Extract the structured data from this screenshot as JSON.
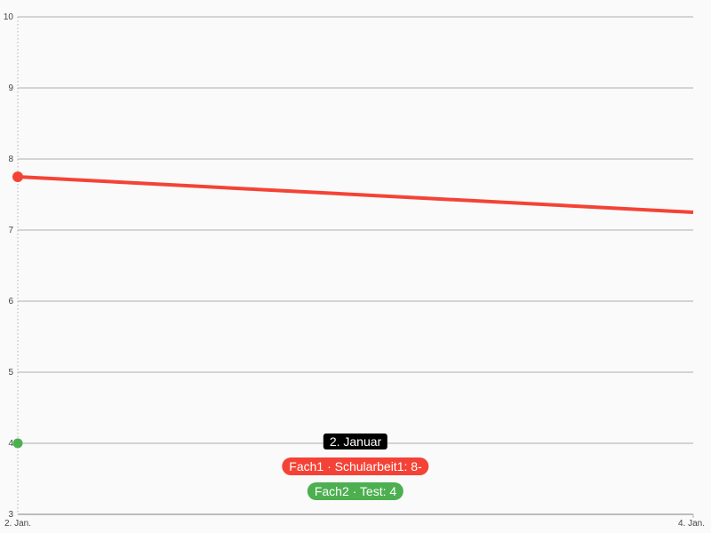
{
  "chart_data": {
    "type": "line",
    "x_ticks": [
      "2. Jan.",
      "4. Jan."
    ],
    "x": [
      "2. Jan.",
      "4. Jan."
    ],
    "ylim": [
      3,
      10
    ],
    "y_ticks": [
      "3",
      "4",
      "5",
      "6",
      "7",
      "8",
      "9",
      "10"
    ],
    "grid": true,
    "series": [
      {
        "name": "Fach1",
        "color": "#f44336",
        "values": [
          7.75,
          7.25
        ],
        "marker_at_first": true
      },
      {
        "name": "Fach2",
        "color": "#4caf50",
        "values": [
          4,
          null
        ],
        "marker_at_first": true
      }
    ]
  },
  "tooltip": {
    "date": "2. Januar",
    "entries": [
      {
        "text": "Fach1 · Schularbeit1: 8-",
        "color": "#f44336"
      },
      {
        "text": "Fach2 · Test: 4",
        "color": "#4caf50"
      }
    ]
  }
}
